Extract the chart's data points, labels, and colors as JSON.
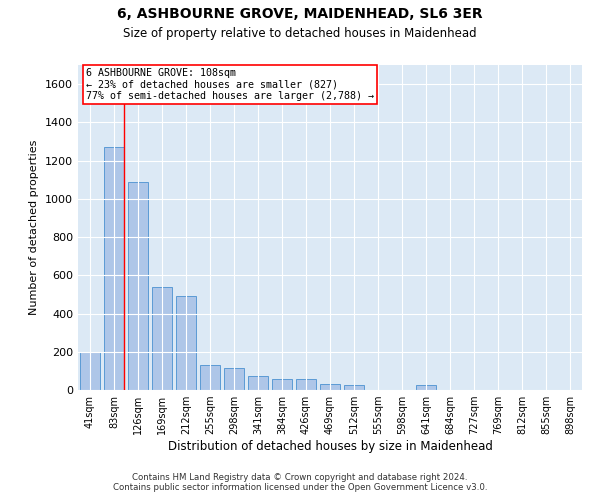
{
  "title": "6, ASHBOURNE GROVE, MAIDENHEAD, SL6 3ER",
  "subtitle": "Size of property relative to detached houses in Maidenhead",
  "xlabel": "Distribution of detached houses by size in Maidenhead",
  "ylabel": "Number of detached properties",
  "bar_color": "#aec6e8",
  "bar_edge_color": "#5b9bd5",
  "background_color": "#dce9f5",
  "grid_color": "#ffffff",
  "categories": [
    "41sqm",
    "83sqm",
    "126sqm",
    "169sqm",
    "212sqm",
    "255sqm",
    "298sqm",
    "341sqm",
    "384sqm",
    "426sqm",
    "469sqm",
    "512sqm",
    "555sqm",
    "598sqm",
    "641sqm",
    "684sqm",
    "727sqm",
    "769sqm",
    "812sqm",
    "855sqm",
    "898sqm"
  ],
  "values": [
    200,
    1270,
    1090,
    540,
    490,
    130,
    115,
    75,
    60,
    55,
    30,
    25,
    0,
    0,
    25,
    0,
    0,
    0,
    0,
    0,
    0
  ],
  "ylim": [
    0,
    1700
  ],
  "yticks": [
    0,
    200,
    400,
    600,
    800,
    1000,
    1200,
    1400,
    1600
  ],
  "property_line_x": 1.42,
  "property_line_label": "6 ASHBOURNE GROVE: 108sqm",
  "annotation_line1": "← 23% of detached houses are smaller (827)",
  "annotation_line2": "77% of semi-detached houses are larger (2,788) →",
  "footer_line1": "Contains HM Land Registry data © Crown copyright and database right 2024.",
  "footer_line2": "Contains public sector information licensed under the Open Government Licence v3.0.",
  "figsize": [
    6.0,
    5.0
  ],
  "dpi": 100
}
